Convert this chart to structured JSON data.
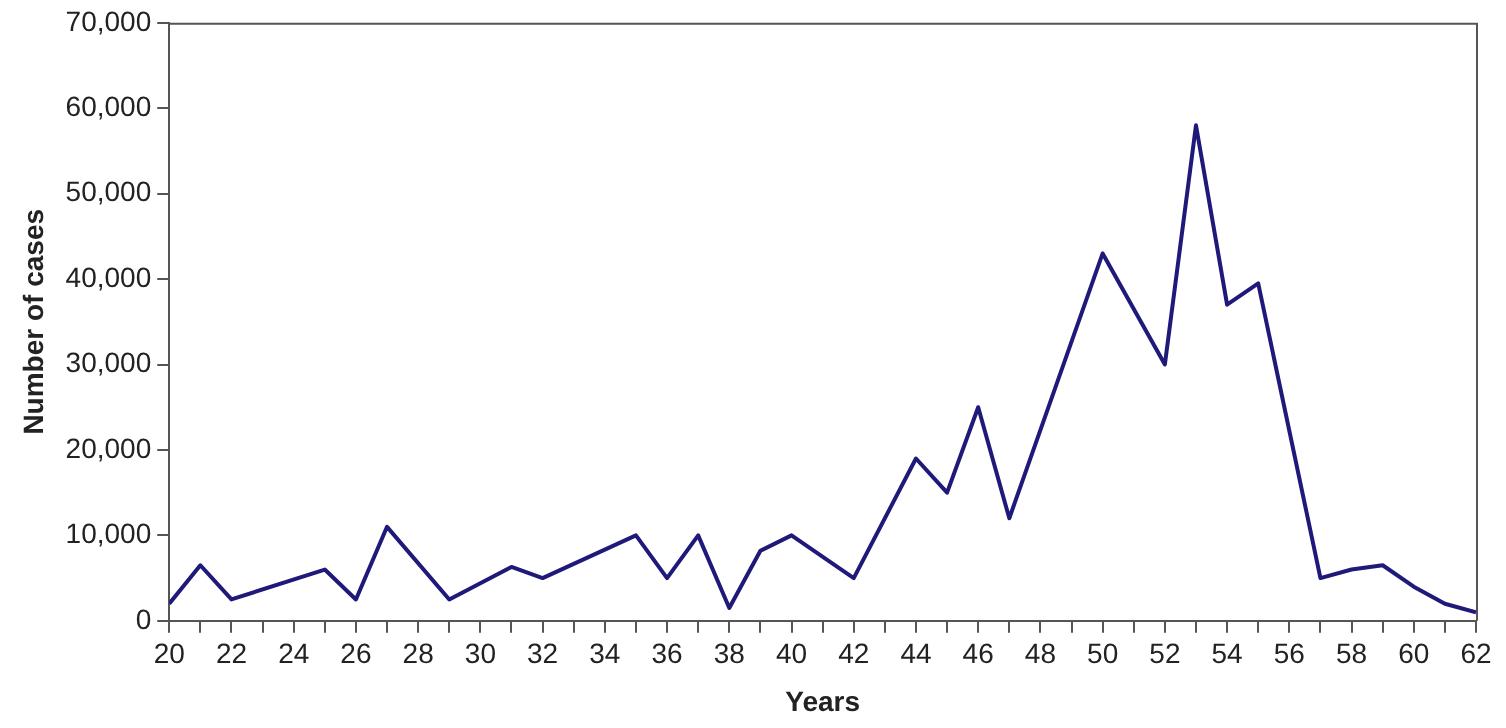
{
  "chart_data": {
    "type": "line",
    "xlabel": "Years",
    "ylabel": "Number of cases",
    "x": [
      20,
      21,
      22,
      25,
      26,
      27,
      29,
      31,
      32,
      35,
      36,
      37,
      38,
      39,
      40,
      42,
      44,
      45,
      46,
      47,
      50,
      52,
      53,
      54,
      55,
      57,
      58,
      59,
      60,
      61,
      62
    ],
    "series": [
      {
        "color": "#1f1a7a",
        "values": [
          2000,
          6500,
          2500,
          6000,
          2500,
          11000,
          2500,
          6300,
          5000,
          10000,
          5000,
          10000,
          1500,
          8200,
          10000,
          5000,
          19000,
          15000,
          25000,
          12000,
          43000,
          30000,
          58000,
          37000,
          39500,
          5000,
          6000,
          6500,
          4000,
          2000,
          1000
        ]
      }
    ],
    "xlim": [
      20,
      62
    ],
    "xticks": [
      20,
      {
        "value": 21,
        "label": null
      },
      22,
      {
        "value": 23,
        "label": null
      },
      24,
      {
        "value": 25,
        "label": null
      },
      26,
      {
        "value": 27,
        "label": null
      },
      28,
      {
        "value": 29,
        "label": null
      },
      30,
      {
        "value": 31,
        "label": null
      },
      32,
      {
        "value": 33,
        "label": null
      },
      34,
      {
        "value": 35,
        "label": null
      },
      36,
      {
        "value": 37,
        "label": null
      },
      38,
      {
        "value": 39,
        "label": null
      },
      40,
      {
        "value": 41,
        "label": null
      },
      42,
      {
        "value": 43,
        "label": null
      },
      44,
      {
        "value": 45,
        "label": null
      },
      46,
      {
        "value": 47,
        "label": null
      },
      48,
      {
        "value": 49,
        "label": null
      },
      50,
      {
        "value": 51,
        "label": null
      },
      52,
      {
        "value": 53,
        "label": null
      },
      54,
      {
        "value": 55,
        "label": null
      },
      56,
      {
        "value": 57,
        "label": null
      },
      58,
      {
        "value": 59,
        "label": null
      },
      60,
      {
        "value": 61,
        "label": null
      },
      62
    ],
    "ylim": [
      0,
      70000
    ],
    "yticks": [
      {
        "value": 0,
        "label": "0"
      },
      {
        "value": 10000,
        "label": "10,000"
      },
      {
        "value": 20000,
        "label": "20,000"
      },
      {
        "value": 30000,
        "label": "30,000"
      },
      {
        "value": 40000,
        "label": "40,000"
      },
      {
        "value": 50000,
        "label": "50,000"
      },
      {
        "value": 60000,
        "label": "60,000"
      },
      {
        "value": 70000,
        "label": "70,000"
      }
    ],
    "grid": false,
    "legend": false,
    "marker": "none",
    "line_style": "solid"
  }
}
